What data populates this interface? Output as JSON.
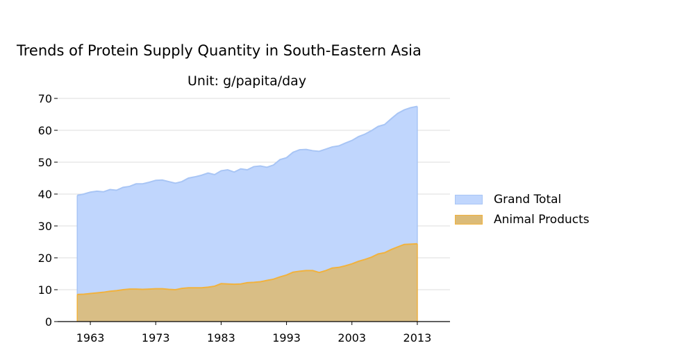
{
  "chart_data": {
    "type": "area",
    "title": "Trends of Protein Supply Quantity in South-Eastern Asia",
    "subtitle": "Unit: g/papita/day",
    "xlabel": "",
    "ylabel": "",
    "xlim": [
      1958,
      2018
    ],
    "ylim": [
      0,
      70
    ],
    "x_ticks": [
      1963,
      1973,
      1983,
      1993,
      2003,
      2013
    ],
    "y_ticks": [
      0,
      10,
      20,
      30,
      40,
      50,
      60,
      70
    ],
    "grid": true,
    "legend_position": "right",
    "x": [
      1961,
      1962,
      1963,
      1964,
      1965,
      1966,
      1967,
      1968,
      1969,
      1970,
      1971,
      1972,
      1973,
      1974,
      1975,
      1976,
      1977,
      1978,
      1979,
      1980,
      1981,
      1982,
      1983,
      1984,
      1985,
      1986,
      1987,
      1988,
      1989,
      1990,
      1991,
      1992,
      1993,
      1994,
      1995,
      1996,
      1997,
      1998,
      1999,
      2000,
      2001,
      2002,
      2003,
      2004,
      2005,
      2006,
      2007,
      2008,
      2009,
      2010,
      2011,
      2012,
      2013
    ],
    "series": [
      {
        "name": "Grand Total",
        "fill": "#c0d6fd",
        "stroke": "#a8c5f5",
        "values": [
          39.6,
          40.0,
          40.6,
          40.9,
          40.7,
          41.4,
          41.2,
          42.1,
          42.4,
          43.2,
          43.2,
          43.7,
          44.3,
          44.4,
          43.9,
          43.4,
          43.9,
          45.0,
          45.4,
          45.9,
          46.6,
          46.1,
          47.3,
          47.6,
          46.9,
          47.9,
          47.6,
          48.6,
          48.8,
          48.4,
          49.1,
          50.8,
          51.4,
          53.1,
          53.9,
          54.0,
          53.6,
          53.4,
          54.1,
          54.8,
          55.1,
          56.0,
          56.8,
          58.0,
          58.8,
          59.9,
          61.2,
          61.8,
          63.6,
          65.3,
          66.4,
          67.1,
          67.5
        ]
      },
      {
        "name": "Animal Products",
        "fill": "#dbbb78",
        "stroke": "#f1b23d",
        "values": [
          8.5,
          8.6,
          8.8,
          9.0,
          9.2,
          9.5,
          9.7,
          10.0,
          10.2,
          10.2,
          10.1,
          10.2,
          10.3,
          10.3,
          10.1,
          10.0,
          10.4,
          10.6,
          10.6,
          10.6,
          10.8,
          11.1,
          11.9,
          11.8,
          11.7,
          11.8,
          12.2,
          12.3,
          12.5,
          12.9,
          13.3,
          14.0,
          14.6,
          15.5,
          15.8,
          16.0,
          16.0,
          15.4,
          16.0,
          16.8,
          17.0,
          17.5,
          18.1,
          18.9,
          19.5,
          20.2,
          21.2,
          21.6,
          22.6,
          23.4,
          24.2,
          24.3,
          24.4
        ]
      }
    ]
  }
}
